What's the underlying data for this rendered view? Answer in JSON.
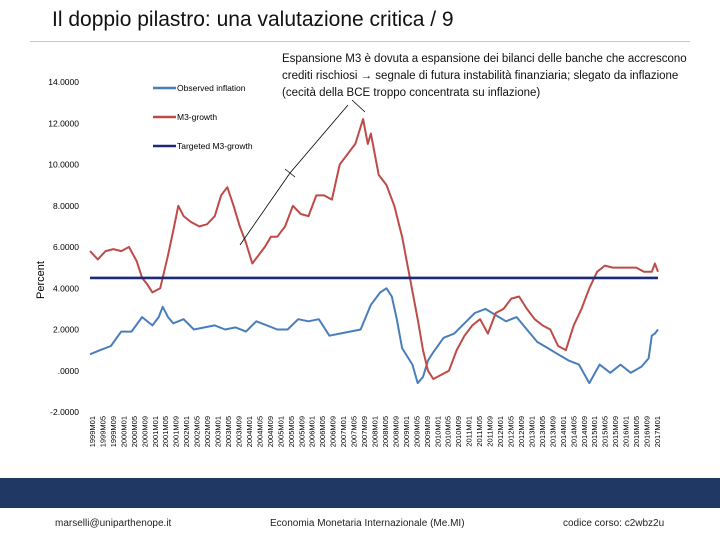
{
  "slide": {
    "title": "Il doppio pilastro: una valutazione critica / 9",
    "annotation": "Espansione M3 è dovuta a espansione dei bilanci delle banche che accrescono crediti rischiosi → segnale di futura instabilità finanziaria; slegato da inflazione (cecità della BCE troppo concentrata su inflazione)",
    "footer_left": "marselli@uniparthenope.it",
    "footer_center": "Economia Monetaria Internazionale (Me.MI)",
    "footer_right": "codice corso: c2wbz2u"
  },
  "colors": {
    "inflation": "#4a7ebb",
    "m3": "#be4b48",
    "target": "#1f2a78",
    "footer": "#1f3864"
  },
  "chart_data": {
    "type": "line",
    "title": "",
    "xlabel": "",
    "ylabel": "Percent",
    "ylim": [
      -2,
      14
    ],
    "y_ticks": [
      {
        "v": 14,
        "label": "14.0000"
      },
      {
        "v": 12,
        "label": "12.0000"
      },
      {
        "v": 10,
        "label": "10.0000"
      },
      {
        "v": 8,
        "label": "8.0000"
      },
      {
        "v": 6,
        "label": "6.0000"
      },
      {
        "v": 4,
        "label": "4.0000"
      },
      {
        "v": 2,
        "label": "2.0000"
      },
      {
        "v": 0,
        "label": ".0000"
      },
      {
        "v": -2,
        "label": "-2.0000"
      }
    ],
    "x_ticks": [
      "1999M01",
      "1999M05",
      "1999M09",
      "2000M01",
      "2000M05",
      "2000M09",
      "2001M01",
      "2001M05",
      "2001M09",
      "2002M01",
      "2002M05",
      "2002M09",
      "2003M01",
      "2003M05",
      "2003M09",
      "2004M01",
      "2004M05",
      "2004M09",
      "2005M01",
      "2005M05",
      "2005M09",
      "2006M01",
      "2006M05",
      "2006M09",
      "2007M01",
      "2007M05",
      "2007M09",
      "2008M01",
      "2008M05",
      "2008M09",
      "2009M01",
      "2009M05",
      "2009M09",
      "2010M01",
      "2010M05",
      "2010M09",
      "2011M01",
      "2011M05",
      "2011M09",
      "2012M01",
      "2012M05",
      "2012M09",
      "2013M01",
      "2013M05",
      "2013M09",
      "2014M01",
      "2014M05",
      "2014M09",
      "2015M01",
      "2015M05",
      "2015M09",
      "2016M01",
      "2016M05",
      "2016M09",
      "2017M01"
    ],
    "legend": [
      "Observed inflation",
      "M3-growth",
      "Targeted M3-growth"
    ],
    "series": [
      {
        "name": "Observed inflation",
        "t": [
          1999.0,
          1999.33,
          1999.67,
          2000.0,
          2000.33,
          2000.67,
          2001.0,
          2001.2,
          2001.33,
          2001.5,
          2001.67,
          2002.0,
          2002.33,
          2002.67,
          2003.0,
          2003.33,
          2003.67,
          2004.0,
          2004.33,
          2004.67,
          2005.0,
          2005.33,
          2005.67,
          2006.0,
          2006.33,
          2006.67,
          2007.0,
          2007.33,
          2007.67,
          2008.0,
          2008.3,
          2008.5,
          2008.67,
          2008.83,
          2009.0,
          2009.33,
          2009.5,
          2009.67,
          2009.83,
          2010.0,
          2010.33,
          2010.67,
          2011.0,
          2011.33,
          2011.67,
          2012.0,
          2012.33,
          2012.67,
          2013.0,
          2013.33,
          2013.67,
          2014.0,
          2014.33,
          2014.67,
          2015.0,
          2015.33,
          2015.67,
          2016.0,
          2016.33,
          2016.67,
          2016.9,
          2017.0,
          2017.1,
          2017.2
        ],
        "v": [
          0.8,
          1.0,
          1.2,
          1.9,
          1.9,
          2.6,
          2.2,
          2.6,
          3.1,
          2.6,
          2.3,
          2.5,
          2.0,
          2.1,
          2.2,
          2.0,
          2.1,
          1.9,
          2.4,
          2.2,
          2.0,
          2.0,
          2.5,
          2.4,
          2.5,
          1.7,
          1.8,
          1.9,
          2.0,
          3.2,
          3.8,
          4.0,
          3.6,
          2.5,
          1.1,
          0.3,
          -0.6,
          -0.3,
          0.5,
          0.9,
          1.6,
          1.8,
          2.3,
          2.8,
          3.0,
          2.7,
          2.4,
          2.6,
          2.0,
          1.4,
          1.1,
          0.8,
          0.5,
          0.3,
          -0.6,
          0.3,
          -0.1,
          0.3,
          -0.1,
          0.2,
          0.6,
          1.7,
          1.8,
          2.0
        ]
      },
      {
        "name": "M3-growth",
        "t": [
          1999.0,
          1999.25,
          1999.5,
          1999.75,
          2000.0,
          2000.25,
          2000.5,
          2000.67,
          2000.83,
          2001.0,
          2001.25,
          2001.5,
          2001.67,
          2001.83,
          2002.0,
          2002.25,
          2002.5,
          2002.75,
          2003.0,
          2003.2,
          2003.4,
          2003.6,
          2003.8,
          2004.0,
          2004.2,
          2004.4,
          2004.6,
          2004.8,
          2005.0,
          2005.25,
          2005.5,
          2005.75,
          2006.0,
          2006.25,
          2006.5,
          2006.75,
          2007.0,
          2007.25,
          2007.5,
          2007.75,
          2007.9,
          2008.0,
          2008.25,
          2008.5,
          2008.75,
          2009.0,
          2009.25,
          2009.5,
          2009.67,
          2009.83,
          2010.0,
          2010.25,
          2010.5,
          2010.75,
          2011.0,
          2011.25,
          2011.5,
          2011.75,
          2012.0,
          2012.25,
          2012.5,
          2012.75,
          2013.0,
          2013.25,
          2013.5,
          2013.75,
          2014.0,
          2014.25,
          2014.5,
          2014.75,
          2015.0,
          2015.25,
          2015.5,
          2015.75,
          2016.0,
          2016.25,
          2016.5,
          2016.75,
          2017.0,
          2017.1,
          2017.2
        ],
        "v": [
          5.8,
          5.4,
          5.8,
          5.9,
          5.8,
          6.0,
          5.3,
          4.5,
          4.2,
          3.8,
          4.0,
          5.6,
          6.8,
          8.0,
          7.5,
          7.2,
          7.0,
          7.1,
          7.5,
          8.5,
          8.9,
          8.0,
          7.0,
          6.2,
          5.2,
          5.6,
          6.0,
          6.5,
          6.5,
          7.0,
          8.0,
          7.6,
          7.5,
          8.5,
          8.5,
          8.3,
          10.0,
          10.5,
          11.0,
          12.2,
          11.0,
          11.5,
          9.5,
          9.0,
          8.0,
          6.5,
          4.5,
          2.5,
          1.0,
          0.0,
          -0.4,
          -0.2,
          0.0,
          1.0,
          1.7,
          2.2,
          2.5,
          1.8,
          2.8,
          3.0,
          3.5,
          3.6,
          3.0,
          2.5,
          2.2,
          2.0,
          1.2,
          1.0,
          2.2,
          3.0,
          4.0,
          4.8,
          5.1,
          5.0,
          5.0,
          5.0,
          5.0,
          4.8,
          4.8,
          5.2,
          4.8
        ]
      },
      {
        "name": "Targeted M3-growth",
        "t": [
          1999.0,
          2017.2
        ],
        "v": [
          4.5,
          4.5
        ]
      }
    ]
  }
}
